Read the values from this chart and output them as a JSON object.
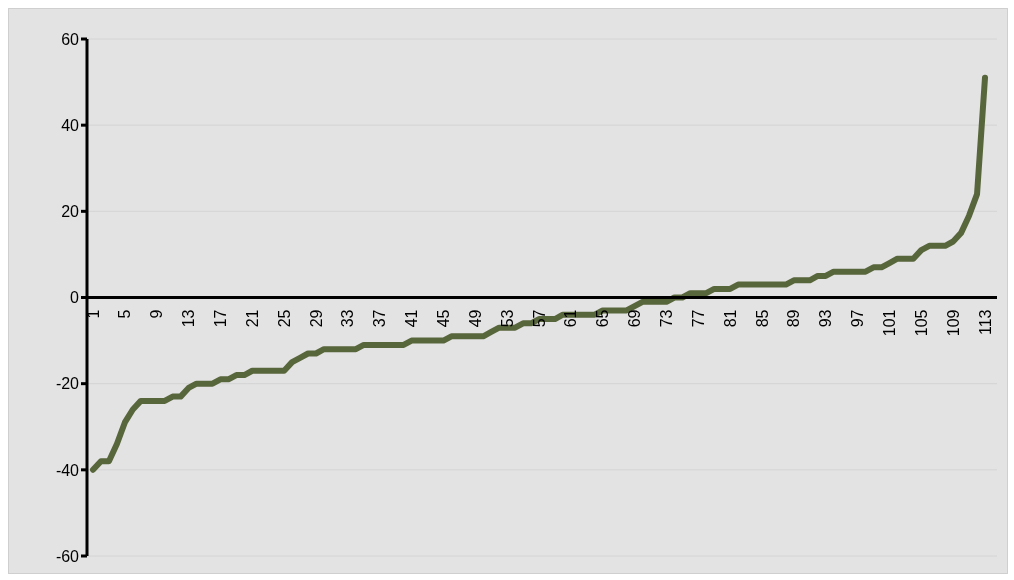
{
  "chart_data": {
    "type": "line",
    "categories": [
      "1",
      null,
      null,
      null,
      "5",
      null,
      null,
      null,
      "9",
      null,
      null,
      null,
      "13",
      null,
      null,
      null,
      "17",
      null,
      null,
      null,
      "21",
      null,
      null,
      null,
      "25",
      null,
      null,
      null,
      "29",
      null,
      null,
      null,
      "33",
      null,
      null,
      null,
      "37",
      null,
      null,
      null,
      "41",
      null,
      null,
      null,
      "45",
      null,
      null,
      null,
      "49",
      null,
      null,
      null,
      "53",
      null,
      null,
      null,
      "57",
      null,
      null,
      null,
      "61",
      null,
      null,
      null,
      "65",
      null,
      null,
      null,
      "69",
      null,
      null,
      null,
      "73",
      null,
      null,
      null,
      "77",
      null,
      null,
      null,
      "81",
      null,
      null,
      null,
      "85",
      null,
      null,
      null,
      "89",
      null,
      null,
      null,
      "93",
      null,
      null,
      null,
      "97",
      null,
      null,
      null,
      "101",
      null,
      null,
      null,
      "105",
      null,
      null,
      null,
      "109",
      null,
      null,
      null,
      "113"
    ],
    "series": [
      {
        "color": "#58663c",
        "values": [
          -40,
          -38,
          -38,
          -34,
          -29,
          -26,
          -24,
          -24,
          -24,
          -24,
          -23,
          -23,
          -21,
          -20,
          -20,
          -20,
          -19,
          -19,
          -18,
          -18,
          -17,
          -17,
          -17,
          -17,
          -17,
          -15,
          -14,
          -13,
          -13,
          -12,
          -12,
          -12,
          -12,
          -12,
          -11,
          -11,
          -11,
          -11,
          -11,
          -11,
          -10,
          -10,
          -10,
          -10,
          -10,
          -9,
          -9,
          -9,
          -9,
          -9,
          -8,
          -7,
          -7,
          -7,
          -6,
          -6,
          -5,
          -5,
          -5,
          -4,
          -4,
          -4,
          -4,
          -4,
          -3,
          -3,
          -3,
          -3,
          -2,
          -1,
          -1,
          -1,
          -1,
          0,
          0,
          1,
          1,
          1,
          2,
          2,
          2,
          3,
          3,
          3,
          3,
          3,
          3,
          3,
          4,
          4,
          4,
          5,
          5,
          6,
          6,
          6,
          6,
          6,
          7,
          7,
          8,
          9,
          9,
          9,
          11,
          12,
          12,
          12,
          13,
          15,
          19,
          24,
          51
        ]
      }
    ],
    "ylim": [
      -60,
      60
    ],
    "yticks": [
      -60,
      -40,
      -20,
      0,
      20,
      40,
      60
    ],
    "grid": "y",
    "legend": false,
    "marker": "none",
    "line_style": "solid"
  }
}
